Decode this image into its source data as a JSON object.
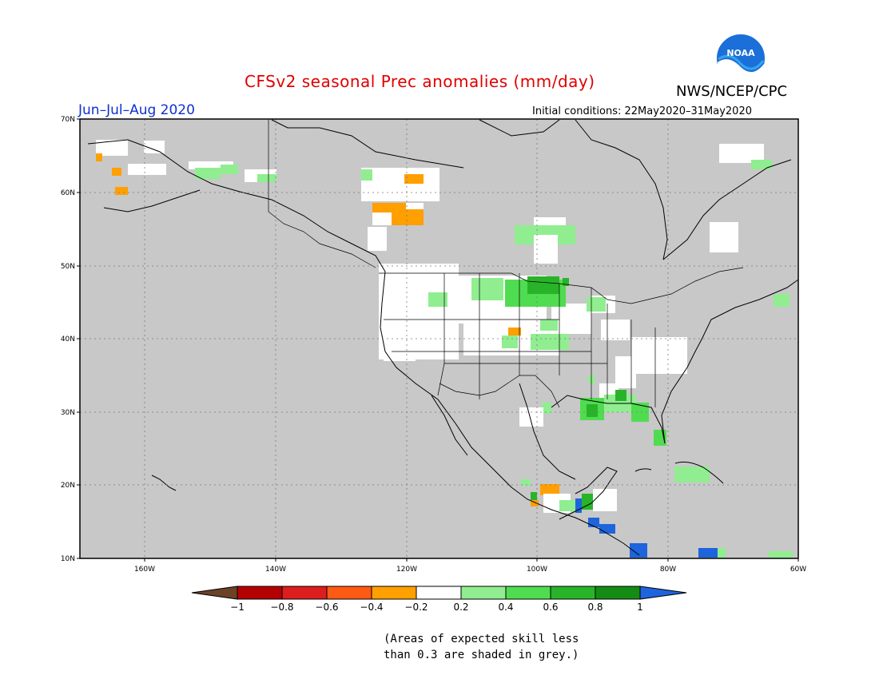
{
  "title": "CFSv2 seasonal Prec anomalies (mm/day)",
  "agency": "NWS/NCEP/CPC",
  "logo_text": "NOAA",
  "period": "Jun–Jul–Aug 2020",
  "initial_conditions": "Initial conditions: 22May2020–31May2020",
  "map": {
    "lat_labels": [
      "70N",
      "60N",
      "50N",
      "40N",
      "30N",
      "20N",
      "10N"
    ],
    "lon_labels": [
      "160W",
      "140W",
      "120W",
      "100W",
      "80W",
      "60W"
    ],
    "land_color": "#c8c8c8",
    "grid_color": "#7a7a7a"
  },
  "legend": {
    "tick_labels": [
      "−1",
      "−0.8",
      "−0.6",
      "−0.4",
      "−0.2",
      "0.2",
      "0.4",
      "0.6",
      "0.8",
      "1"
    ],
    "colors": [
      "#6b4228",
      "#b40000",
      "#dc1e1e",
      "#ff5a14",
      "#ff9f00",
      "#ffffff",
      "#90ee90",
      "#50dc50",
      "#28b428",
      "#148c14",
      "#1e64dc"
    ]
  },
  "note": [
    "(Areas of expected skill less",
    "than 0.3 are shaded in grey.)"
  ]
}
